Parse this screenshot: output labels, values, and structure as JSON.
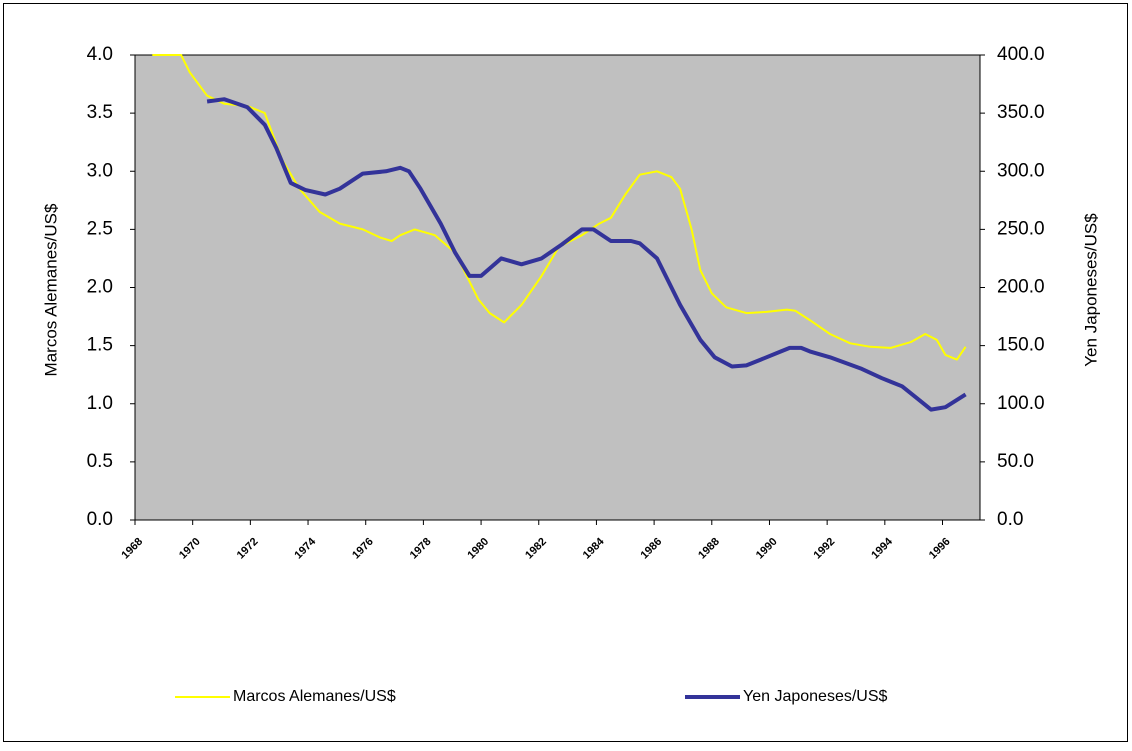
{
  "chart_data": {
    "type": "line",
    "y_label": "Marcos Alemanes/US$",
    "y2_label": "Yen Japoneses/US$",
    "xlim": [
      1968,
      1997.3
    ],
    "xticks": [
      1968,
      1970,
      1972,
      1974,
      1976,
      1978,
      1980,
      1982,
      1984,
      1986,
      1988,
      1990,
      1992,
      1994,
      1996
    ],
    "ylim": [
      0,
      4
    ],
    "yticks": [
      {
        "value": 0,
        "label": "0.0"
      },
      {
        "value": 0.5,
        "label": "0.5"
      },
      {
        "value": 1,
        "label": "1.0"
      },
      {
        "value": 1.5,
        "label": "1.5"
      },
      {
        "value": 2,
        "label": "2.0"
      },
      {
        "value": 2.5,
        "label": "2.5"
      },
      {
        "value": 3,
        "label": "3.0"
      },
      {
        "value": 3.5,
        "label": "3.5"
      },
      {
        "value": 4,
        "label": "4.0"
      }
    ],
    "y2lim": [
      0,
      400
    ],
    "y2ticks": [
      {
        "value": 0,
        "label": "0.0"
      },
      {
        "value": 50,
        "label": "50.0"
      },
      {
        "value": 100,
        "label": "100.0"
      },
      {
        "value": 150,
        "label": "150.0"
      },
      {
        "value": 200,
        "label": "200.0"
      },
      {
        "value": 250,
        "label": "250.0"
      },
      {
        "value": 300,
        "label": "300.0"
      },
      {
        "value": 350,
        "label": "350.0"
      },
      {
        "value": 400,
        "label": "400.0"
      }
    ],
    "legend": "bottom",
    "series": [
      {
        "name": "Marcos Alemanes/US$",
        "color": "#ffff00",
        "axis": "y",
        "x": [
          1968.6,
          1969.6,
          1969.9,
          1970.5,
          1971.1,
          1971.9,
          1972.5,
          1973.1,
          1973.7,
          1974.4,
          1975.1,
          1975.9,
          1976.5,
          1976.9,
          1977.2,
          1977.7,
          1978.4,
          1979.1,
          1979.9,
          1980.3,
          1980.8,
          1981.4,
          1982.1,
          1982.7,
          1983.5,
          1984.1,
          1984.5,
          1985.0,
          1985.5,
          1986.1,
          1986.6,
          1986.9,
          1987.3,
          1987.6,
          1988.0,
          1988.5,
          1989.2,
          1989.9,
          1990.6,
          1990.9,
          1991.4,
          1992.1,
          1992.8,
          1993.5,
          1994.2,
          1994.9,
          1995.4,
          1995.8,
          1996.1,
          1996.5,
          1996.8
        ],
        "values": [
          4.0,
          4.0,
          3.85,
          3.65,
          3.58,
          3.56,
          3.5,
          3.1,
          2.85,
          2.65,
          2.55,
          2.5,
          2.43,
          2.4,
          2.45,
          2.5,
          2.45,
          2.3,
          1.9,
          1.78,
          1.7,
          1.85,
          2.1,
          2.35,
          2.45,
          2.55,
          2.6,
          2.8,
          2.97,
          3.0,
          2.95,
          2.85,
          2.5,
          2.15,
          1.95,
          1.83,
          1.78,
          1.79,
          1.81,
          1.8,
          1.72,
          1.6,
          1.52,
          1.49,
          1.48,
          1.53,
          1.6,
          1.55,
          1.42,
          1.38,
          1.49
        ]
      },
      {
        "name": "Yen Japoneses/US$",
        "color": "#333399",
        "axis": "y2",
        "x": [
          1970.5,
          1971.1,
          1971.9,
          1972.5,
          1972.9,
          1973.4,
          1973.9,
          1974.6,
          1975.1,
          1975.9,
          1976.7,
          1977.2,
          1977.5,
          1977.9,
          1978.6,
          1979.1,
          1979.6,
          1980.0,
          1980.7,
          1981.4,
          1982.1,
          1982.8,
          1983.5,
          1983.9,
          1984.5,
          1985.2,
          1985.5,
          1986.1,
          1986.9,
          1987.6,
          1988.1,
          1988.7,
          1989.2,
          1989.7,
          1990.4,
          1990.7,
          1991.1,
          1991.4,
          1992.1,
          1993.2,
          1993.9,
          1994.6,
          1995.1,
          1995.6,
          1996.1,
          1996.8
        ],
        "values": [
          360,
          362,
          355,
          340,
          320,
          290,
          284,
          280,
          285,
          298,
          300,
          303,
          300,
          285,
          255,
          230,
          210,
          210,
          225,
          220,
          225,
          237,
          250,
          250,
          240,
          240,
          238,
          225,
          185,
          155,
          140,
          132,
          133,
          138,
          145,
          148,
          148,
          145,
          140,
          130,
          122,
          115,
          105,
          95,
          97,
          108
        ]
      }
    ]
  }
}
